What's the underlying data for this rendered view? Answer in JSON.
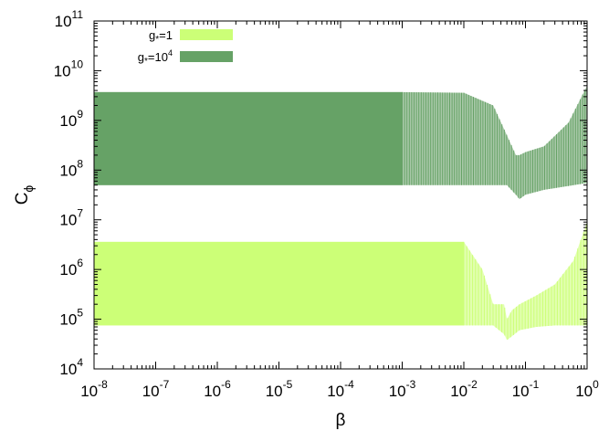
{
  "chart_data": {
    "type": "area",
    "xlabel": "β",
    "ylabel": "C",
    "ylabel_sub": "ϕ",
    "x_scale": "log",
    "y_scale": "log",
    "xlim": [
      1e-08,
      1
    ],
    "ylim": [
      10000.0,
      100000000000.0
    ],
    "grid": false,
    "legend_position": "top-left",
    "x_ticks": [
      {
        "value": 1e-08,
        "base": "10",
        "exp": "-8"
      },
      {
        "value": 1e-07,
        "base": "10",
        "exp": "-7"
      },
      {
        "value": 1e-06,
        "base": "10",
        "exp": "-6"
      },
      {
        "value": 1e-05,
        "base": "10",
        "exp": "-5"
      },
      {
        "value": 0.0001,
        "base": "10",
        "exp": "-4"
      },
      {
        "value": 0.001,
        "base": "10",
        "exp": "-3"
      },
      {
        "value": 0.01,
        "base": "10",
        "exp": "-2"
      },
      {
        "value": 0.1,
        "base": "10",
        "exp": "-1"
      },
      {
        "value": 1,
        "base": "10",
        "exp": "0"
      }
    ],
    "y_ticks": [
      {
        "value": 10000.0,
        "base": "10",
        "exp": "4"
      },
      {
        "value": 100000.0,
        "base": "10",
        "exp": "5"
      },
      {
        "value": 1000000.0,
        "base": "10",
        "exp": "6"
      },
      {
        "value": 10000000.0,
        "base": "10",
        "exp": "7"
      },
      {
        "value": 100000000.0,
        "base": "10",
        "exp": "8"
      },
      {
        "value": 1000000000.0,
        "base": "10",
        "exp": "9"
      },
      {
        "value": 10000000000.0,
        "base": "10",
        "exp": "10"
      },
      {
        "value": 100000000000.0,
        "base": "10",
        "exp": "11"
      }
    ],
    "series": [
      {
        "name": "g*=1",
        "legend_base": "g",
        "legend_sub": "*",
        "legend_rest": "=1",
        "legend_exp": "",
        "color": "#ccff77",
        "light_color": "#e2ffb0",
        "band": {
          "x": [
            1e-08,
            0.001,
            0.01,
            0.02,
            0.03,
            0.045,
            0.05,
            0.06,
            0.08,
            0.15,
            0.3,
            0.6,
            1
          ],
          "upper": [
            3600000.0,
            3600000.0,
            3600000.0,
            1000000.0,
            200000.0,
            200000.0,
            100000.0,
            150000.0,
            200000.0,
            300000.0,
            500000.0,
            1500000.0,
            9000000.0
          ],
          "lower": [
            75000.0,
            75000.0,
            75000.0,
            75000.0,
            75000.0,
            50000.0,
            38000.0,
            45000.0,
            60000.0,
            70000.0,
            75000.0,
            75000.0,
            75000.0
          ]
        }
      },
      {
        "name": "g*=10^4",
        "legend_base": "g",
        "legend_sub": "*",
        "legend_rest": "=10",
        "legend_exp": "4",
        "color": "#66a266",
        "light_color": "#a9c9a9",
        "band": {
          "x": [
            1e-08,
            0.001,
            0.01,
            0.03,
            0.05,
            0.07,
            0.08,
            0.1,
            0.2,
            0.5,
            1
          ],
          "upper": [
            3700000000.0,
            3700000000.0,
            3600000000.0,
            2000000000.0,
            500000000.0,
            200000000.0,
            200000000.0,
            230000000.0,
            300000000.0,
            900000000.0,
            5000000000.0
          ],
          "lower": [
            50000000.0,
            50000000.0,
            50000000.0,
            50000000.0,
            50000000.0,
            32000000.0,
            26000000.0,
            32000000.0,
            40000000.0,
            48000000.0,
            55000000.0
          ]
        }
      }
    ]
  }
}
